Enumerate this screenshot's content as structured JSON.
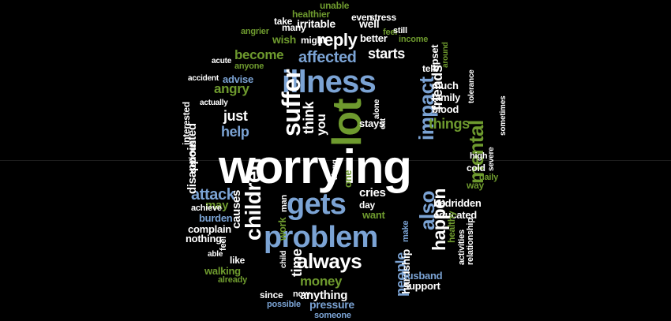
{
  "colors": {
    "background": "#000000",
    "white": "#ffffff",
    "gray": "#d8d8d8",
    "blue": "#7ba3d4",
    "green": "#6e9a2e"
  },
  "words": [
    {
      "text": "worrying",
      "color": "white",
      "rotate": 0
    },
    {
      "text": "lot",
      "color": "green",
      "rotate": -90
    },
    {
      "text": "illness",
      "color": "blue",
      "rotate": 0
    },
    {
      "text": "problem",
      "color": "blue",
      "rotate": 0
    },
    {
      "text": "gets",
      "color": "blue",
      "rotate": 0
    },
    {
      "text": "suffer",
      "color": "white",
      "rotate": -90
    },
    {
      "text": "children",
      "color": "white",
      "rotate": -90
    },
    {
      "text": "mental",
      "color": "green",
      "rotate": -90
    },
    {
      "text": "impact",
      "color": "blue",
      "rotate": -90
    },
    {
      "text": "also",
      "color": "blue",
      "rotate": -90
    },
    {
      "text": "happen",
      "color": "white",
      "rotate": -90
    },
    {
      "text": "always",
      "color": "white",
      "rotate": 0
    },
    {
      "text": "reply",
      "color": "white",
      "rotate": 0
    },
    {
      "text": "affected",
      "color": "blue",
      "rotate": 0
    },
    {
      "text": "become",
      "color": "green",
      "rotate": 0
    },
    {
      "text": "starts",
      "color": "white",
      "rotate": 0
    },
    {
      "text": "attack",
      "color": "blue",
      "rotate": 0
    },
    {
      "text": "things",
      "color": "green",
      "rotate": 0
    },
    {
      "text": "friends",
      "color": "white",
      "rotate": -90
    },
    {
      "text": "people",
      "color": "blue",
      "rotate": -90
    },
    {
      "text": "think",
      "color": "white",
      "rotate": -90
    },
    {
      "text": "you",
      "color": "white",
      "rotate": -90
    },
    {
      "text": "help",
      "color": "blue",
      "rotate": 0
    },
    {
      "text": "just",
      "color": "white",
      "rotate": 0
    },
    {
      "text": "angry",
      "color": "green",
      "rotate": 0
    },
    {
      "text": "money",
      "color": "green",
      "rotate": 0
    },
    {
      "text": "anything",
      "color": "white",
      "rotate": 0
    },
    {
      "text": "time",
      "color": "white",
      "rotate": -90
    },
    {
      "text": "disappointed",
      "color": "white",
      "rotate": -90
    },
    {
      "text": "causes",
      "color": "white",
      "rotate": -90
    },
    {
      "text": "may",
      "color": "green",
      "rotate": 0
    },
    {
      "text": "cries",
      "color": "white",
      "rotate": 0
    },
    {
      "text": "want",
      "color": "green",
      "rotate": 0
    },
    {
      "text": "day",
      "color": "white",
      "rotate": 0
    },
    {
      "text": "bedridden",
      "color": "white",
      "rotate": 0
    },
    {
      "text": "educated",
      "color": "white",
      "rotate": 0
    },
    {
      "text": "pressure",
      "color": "blue",
      "rotate": 0
    },
    {
      "text": "hardship",
      "color": "white",
      "rotate": -90
    },
    {
      "text": "husband",
      "color": "blue",
      "rotate": 0
    },
    {
      "text": "support",
      "color": "white",
      "rotate": 0
    },
    {
      "text": "irritable",
      "color": "white",
      "rotate": 0
    },
    {
      "text": "well",
      "color": "white",
      "rotate": 0
    },
    {
      "text": "better",
      "color": "white",
      "rotate": 0
    },
    {
      "text": "wish",
      "color": "green",
      "rotate": 0
    },
    {
      "text": "might",
      "color": "white",
      "rotate": 0
    },
    {
      "text": "much",
      "color": "white",
      "rotate": 0
    },
    {
      "text": "family",
      "color": "white",
      "rotate": 0
    },
    {
      "text": "blood",
      "color": "white",
      "rotate": 0
    },
    {
      "text": "tell",
      "color": "white",
      "rotate": 0
    },
    {
      "text": "upset",
      "color": "white",
      "rotate": -90
    },
    {
      "text": "stays",
      "color": "white",
      "rotate": 0
    },
    {
      "text": "one",
      "color": "green",
      "rotate": -90
    },
    {
      "text": "burden",
      "color": "blue",
      "rotate": 0
    },
    {
      "text": "complain",
      "color": "white",
      "rotate": 0
    },
    {
      "text": "nothing",
      "color": "white",
      "rotate": 0
    },
    {
      "text": "walking",
      "color": "green",
      "rotate": 0
    },
    {
      "text": "like",
      "color": "white",
      "rotate": 0
    },
    {
      "text": "advise",
      "color": "blue",
      "rotate": 0
    },
    {
      "text": "serious",
      "color": "white",
      "rotate": -90
    },
    {
      "text": "interested",
      "color": "white",
      "rotate": -90
    },
    {
      "text": "even",
      "color": "white",
      "rotate": 0
    },
    {
      "text": "stress",
      "color": "white",
      "rotate": 0
    },
    {
      "text": "healthier",
      "color": "green",
      "rotate": 0
    },
    {
      "text": "unable",
      "color": "green",
      "rotate": 0
    },
    {
      "text": "take",
      "color": "white",
      "rotate": 0
    },
    {
      "text": "many",
      "color": "white",
      "rotate": 0
    },
    {
      "text": "feel",
      "color": "green",
      "rotate": 0
    },
    {
      "text": "still",
      "color": "white",
      "rotate": 0
    },
    {
      "text": "income",
      "color": "green",
      "rotate": 0
    },
    {
      "text": "angrier",
      "color": "green",
      "rotate": 0
    },
    {
      "text": "anyone",
      "color": "green",
      "rotate": 0
    },
    {
      "text": "acute",
      "color": "white",
      "rotate": 0
    },
    {
      "text": "actually",
      "color": "white",
      "rotate": 0
    },
    {
      "text": "accident",
      "color": "white",
      "rotate": 0
    },
    {
      "text": "around",
      "color": "green",
      "rotate": -90
    },
    {
      "text": "tolerance",
      "color": "white",
      "rotate": -90
    },
    {
      "text": "sometimes",
      "color": "white",
      "rotate": -90
    },
    {
      "text": "high",
      "color": "white",
      "rotate": 0
    },
    {
      "text": "cold",
      "color": "white",
      "rotate": 0
    },
    {
      "text": "way",
      "color": "green",
      "rotate": 0
    },
    {
      "text": "daily",
      "color": "green",
      "rotate": 0
    },
    {
      "text": "severe",
      "color": "white",
      "rotate": -90
    },
    {
      "text": "make",
      "color": "blue",
      "rotate": -90
    },
    {
      "text": "healthy",
      "color": "green",
      "rotate": -90
    },
    {
      "text": "activities",
      "color": "white",
      "rotate": -90
    },
    {
      "text": "relationship",
      "color": "white",
      "rotate": -90
    },
    {
      "text": "along",
      "color": "white",
      "rotate": -90
    },
    {
      "text": "alone",
      "color": "white",
      "rotate": -90
    },
    {
      "text": "eat",
      "color": "white",
      "rotate": -90
    },
    {
      "text": "man",
      "color": "white",
      "rotate": -90
    },
    {
      "text": "work",
      "color": "green",
      "rotate": -90
    },
    {
      "text": "achieve",
      "color": "white",
      "rotate": 0
    },
    {
      "text": "feel",
      "color": "white",
      "rotate": -90
    },
    {
      "text": "able",
      "color": "white",
      "rotate": 0
    },
    {
      "text": "child",
      "color": "white",
      "rotate": -90
    },
    {
      "text": "already",
      "color": "green",
      "rotate": 0
    },
    {
      "text": "since",
      "color": "white",
      "rotate": 0
    },
    {
      "text": "now",
      "color": "white",
      "rotate": 0
    },
    {
      "text": "possible",
      "color": "blue",
      "rotate": 0
    },
    {
      "text": "someone",
      "color": "blue",
      "rotate": 0
    }
  ]
}
